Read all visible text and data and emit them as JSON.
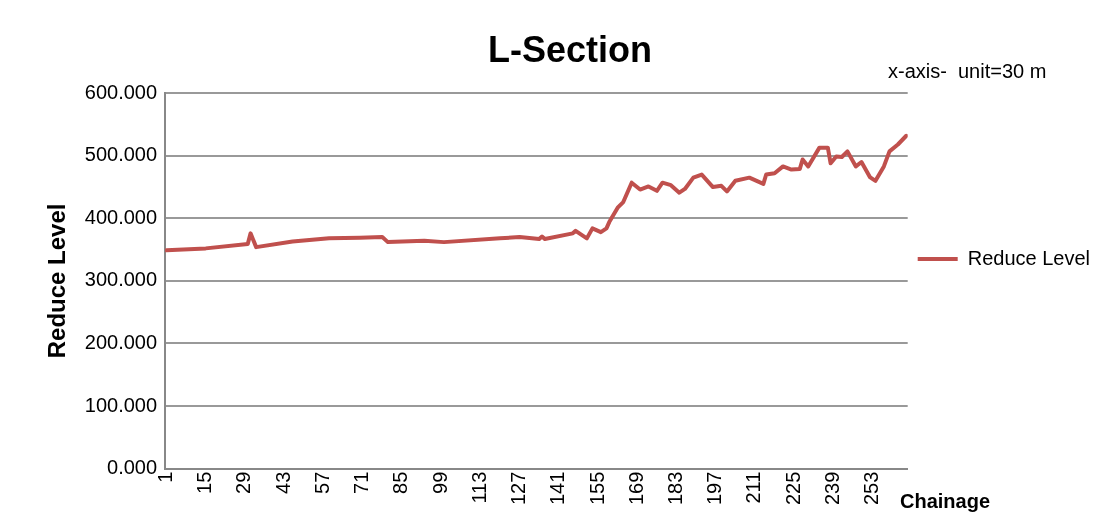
{
  "chart_data": {
    "type": "line",
    "title": "L-Section",
    "xlabel": "Chainage",
    "ylabel": "Reduce Level",
    "annotations": [
      "x-axis-  unit=30 m"
    ],
    "series": [
      {
        "name": "Reduce Level",
        "color": "#c0504d",
        "x": [
          1,
          15,
          30,
          31,
          33,
          46,
          59,
          70,
          78,
          80,
          93,
          100,
          120,
          127,
          134,
          135,
          136,
          146,
          147,
          151,
          153,
          156,
          158,
          159,
          162,
          164,
          167,
          170,
          173,
          176,
          178,
          181,
          184,
          186,
          189,
          192,
          196,
          199,
          201,
          204,
          209,
          212,
          214,
          215,
          218,
          221,
          224,
          227,
          228,
          230,
          234,
          237,
          238,
          240,
          242,
          244,
          247,
          249,
          252,
          254,
          257,
          259,
          262,
          265
        ],
        "values": [
          349,
          352,
          359,
          376,
          354,
          363,
          368,
          369,
          370,
          362,
          364,
          362,
          368,
          370,
          367,
          371,
          367,
          376,
          380,
          368,
          384,
          378,
          384,
          394,
          417,
          426,
          457,
          446,
          451,
          444,
          457,
          453,
          441,
          447,
          465,
          470,
          450,
          452,
          443,
          460,
          465,
          459,
          455,
          470,
          472,
          483,
          478,
          479,
          494,
          483,
          513,
          513,
          488,
          499,
          498,
          507,
          483,
          490,
          466,
          460,
          483,
          507,
          518,
          532
        ]
      }
    ],
    "xlim": [
      0.5,
      265.5
    ],
    "xticks": [
      1,
      15,
      29,
      43,
      57,
      71,
      85,
      99,
      113,
      127,
      141,
      155,
      169,
      183,
      197,
      211,
      225,
      239,
      253
    ],
    "ylim": [
      0,
      600
    ],
    "yticks": [
      {
        "value": 0,
        "label": "0.000"
      },
      {
        "value": 100,
        "label": "100.000"
      },
      {
        "value": 200,
        "label": "200.000"
      },
      {
        "value": 300,
        "label": "300.000"
      },
      {
        "value": 400,
        "label": "400.000"
      },
      {
        "value": 500,
        "label": "500.000"
      },
      {
        "value": 600,
        "label": "600.000"
      }
    ],
    "grid": "y",
    "legend": "right",
    "marker": "none",
    "line_style": "solid"
  }
}
